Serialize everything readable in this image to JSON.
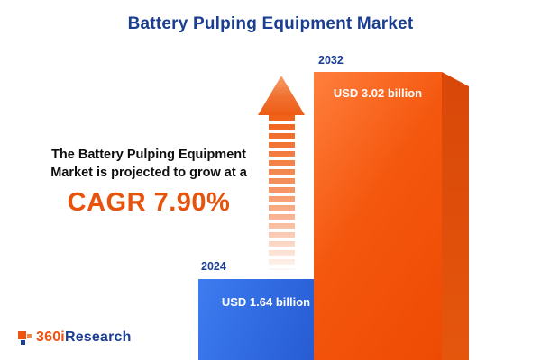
{
  "title": "Battery Pulping Equipment Market",
  "description": {
    "line1": "The Battery Pulping Equipment",
    "line2": "Market is projected to grow at a",
    "cagr": "CAGR 7.90%"
  },
  "chart_data": {
    "type": "bar",
    "title": "Battery Pulping Equipment Market",
    "categories": [
      "2024",
      "2032"
    ],
    "values": [
      1.64,
      3.02
    ],
    "unit": "USD billion",
    "value_labels": [
      "USD 1.64 billion",
      "USD 3.02 billion"
    ],
    "annotation": "The Battery Pulping Equipment Market is projected to grow at a CAGR 7.90%",
    "cagr_percent": 7.9,
    "bar_colors": [
      "#2e6ce0",
      "#f1530a"
    ],
    "bar_side_colors": [
      "#16398f",
      "#d84708"
    ],
    "legend": false,
    "axes": "none",
    "layout": "3d-bars with growth arrow between bars"
  },
  "logo": {
    "brand_orange": "360i",
    "brand_navy": "Research"
  },
  "colors": {
    "navy": "#1b3e91",
    "orange": "#ee5410",
    "background": "#ffffff"
  }
}
